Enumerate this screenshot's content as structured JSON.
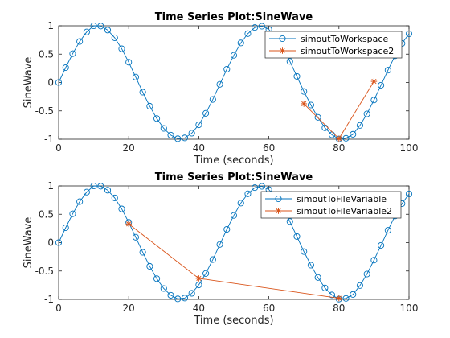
{
  "chart_data": [
    {
      "type": "line",
      "title": "Time Series Plot:SineWave",
      "xlabel": "Time (seconds)",
      "ylabel": "SineWave",
      "xlim": [
        0,
        100
      ],
      "ylim": [
        -1,
        1
      ],
      "xticks": [
        0,
        20,
        40,
        60,
        80,
        100
      ],
      "yticks": [
        -1,
        -0.5,
        0,
        0.5,
        1
      ],
      "grid": false,
      "legend_position": "top-right",
      "series": [
        {
          "name": "simoutToWorkspace",
          "marker": "circle",
          "color": "#0072BD",
          "x": [
            0,
            2,
            4,
            6,
            8,
            10,
            12,
            14,
            16,
            18,
            20,
            22,
            24,
            26,
            28,
            30,
            32,
            34,
            36,
            38,
            40,
            42,
            44,
            46,
            48,
            50,
            52,
            54,
            56,
            58,
            60,
            62,
            64,
            66,
            68,
            70,
            72,
            74,
            76,
            78,
            80,
            82,
            84,
            86,
            88,
            90,
            92,
            94,
            96,
            98,
            100
          ],
          "y": [
            0,
            0.2624,
            0.5083,
            0.7224,
            0.8907,
            1.0,
            0.9956,
            0.9244,
            0.7881,
            0.5945,
            0.3578,
            0.0953,
            -0.1699,
            -0.418,
            -0.6352,
            -0.8084,
            -0.9276,
            -0.9908,
            -0.9766,
            -0.8929,
            -0.7451,
            -0.5434,
            -0.2988,
            -0.0322,
            0.2336,
            0.4795,
            0.6973,
            0.8614,
            0.9697,
            0.9932,
            0.9344,
            0.801,
            0.6076,
            0.3726,
            0.1079,
            -0.1577,
            -0.397,
            -0.6144,
            -0.7985,
            -0.9216,
            -0.9949,
            -0.9833,
            -0.9129,
            -0.756,
            -0.5533,
            -0.3087,
            -0.0488,
            0.2174,
            0.4701,
            0.688,
            0.8583
          ]
        },
        {
          "name": "simoutToWorkspace2",
          "marker": "asterisk",
          "color": "#D95319",
          "x": [
            70,
            80,
            90
          ],
          "y": [
            -0.375,
            -0.99,
            0.02
          ]
        }
      ]
    },
    {
      "type": "line",
      "title": "Time Series Plot:SineWave",
      "xlabel": "Time (seconds)",
      "ylabel": "SineWave",
      "xlim": [
        0,
        100
      ],
      "ylim": [
        -1,
        1
      ],
      "xticks": [
        0,
        20,
        40,
        60,
        80,
        100
      ],
      "yticks": [
        -1,
        -0.5,
        0,
        0.5,
        1
      ],
      "grid": false,
      "legend_position": "top-right",
      "series": [
        {
          "name": "simoutToFileVariable",
          "marker": "circle",
          "color": "#0072BD",
          "x": [
            0,
            2,
            4,
            6,
            8,
            10,
            12,
            14,
            16,
            18,
            20,
            22,
            24,
            26,
            28,
            30,
            32,
            34,
            36,
            38,
            40,
            42,
            44,
            46,
            48,
            50,
            52,
            54,
            56,
            58,
            60,
            62,
            64,
            66,
            68,
            70,
            72,
            74,
            76,
            78,
            80,
            82,
            84,
            86,
            88,
            90,
            92,
            94,
            96,
            98,
            100
          ],
          "y": [
            0,
            0.2624,
            0.5083,
            0.7224,
            0.8907,
            1.0,
            0.9956,
            0.9244,
            0.7881,
            0.5945,
            0.3578,
            0.0953,
            -0.1699,
            -0.418,
            -0.6352,
            -0.8084,
            -0.9276,
            -0.9908,
            -0.9766,
            -0.8929,
            -0.7451,
            -0.5434,
            -0.2988,
            -0.0322,
            0.2336,
            0.4795,
            0.6973,
            0.8614,
            0.9697,
            0.9932,
            0.9344,
            0.801,
            0.6076,
            0.3726,
            0.1079,
            -0.1577,
            -0.397,
            -0.6144,
            -0.7985,
            -0.9216,
            -0.9949,
            -0.9833,
            -0.9129,
            -0.756,
            -0.5533,
            -0.3087,
            -0.0488,
            0.2174,
            0.4701,
            0.688,
            0.8583
          ]
        },
        {
          "name": "simoutToFileVariable2",
          "marker": "asterisk",
          "color": "#D95319",
          "x": [
            20,
            40,
            80
          ],
          "y": [
            0.33,
            -0.63,
            -0.98
          ]
        }
      ]
    }
  ]
}
